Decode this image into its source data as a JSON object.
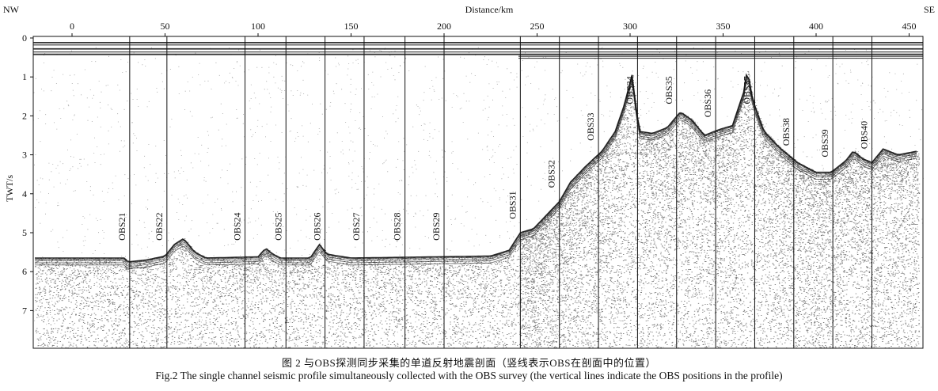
{
  "figure": {
    "corner_left": "NW",
    "corner_right": "SE",
    "x_axis_title": "Distance/km",
    "y_axis_title": "TWT/s",
    "x_ticks": [
      0,
      50,
      100,
      150,
      200,
      250,
      300,
      350,
      400,
      450
    ],
    "y_ticks": [
      0,
      1,
      2,
      3,
      4,
      5,
      6,
      7
    ],
    "obs_stations": [
      {
        "name": "OBS21",
        "km": 31
      },
      {
        "name": "OBS22",
        "km": 51
      },
      {
        "name": "OBS24",
        "km": 93
      },
      {
        "name": "OBS25",
        "km": 115
      },
      {
        "name": "OBS26",
        "km": 136
      },
      {
        "name": "OBS27",
        "km": 157
      },
      {
        "name": "OBS28",
        "km": 179
      },
      {
        "name": "OBS29",
        "km": 200
      },
      {
        "name": "OBS31",
        "km": 241
      },
      {
        "name": "OBS32",
        "km": 262
      },
      {
        "name": "OBS33",
        "km": 283
      },
      {
        "name": "OBS34",
        "km": 304
      },
      {
        "name": "OBS35",
        "km": 325
      },
      {
        "name": "OBS36",
        "km": 346
      },
      {
        "name": "OBS37",
        "km": 367
      },
      {
        "name": "OBS38",
        "km": 388
      },
      {
        "name": "OBS39",
        "km": 409
      },
      {
        "name": "OBS40",
        "km": 430
      }
    ],
    "seafloor_profile": [
      [
        -20,
        5.65
      ],
      [
        28,
        5.65
      ],
      [
        30,
        5.75
      ],
      [
        40,
        5.7
      ],
      [
        50,
        5.6
      ],
      [
        55,
        5.3
      ],
      [
        60,
        5.15
      ],
      [
        66,
        5.5
      ],
      [
        72,
        5.65
      ],
      [
        100,
        5.62
      ],
      [
        104,
        5.4
      ],
      [
        108,
        5.55
      ],
      [
        112,
        5.65
      ],
      [
        128,
        5.65
      ],
      [
        133,
        5.3
      ],
      [
        137,
        5.55
      ],
      [
        150,
        5.65
      ],
      [
        225,
        5.6
      ],
      [
        235,
        5.45
      ],
      [
        241,
        5.0
      ],
      [
        248,
        4.9
      ],
      [
        256,
        4.5
      ],
      [
        262,
        4.2
      ],
      [
        268,
        3.7
      ],
      [
        276,
        3.3
      ],
      [
        285,
        2.9
      ],
      [
        292,
        2.4
      ],
      [
        297,
        1.7
      ],
      [
        301,
        0.95
      ],
      [
        303,
        1.7
      ],
      [
        305,
        2.4
      ],
      [
        312,
        2.45
      ],
      [
        320,
        2.3
      ],
      [
        327,
        1.9
      ],
      [
        333,
        2.1
      ],
      [
        340,
        2.5
      ],
      [
        348,
        2.35
      ],
      [
        355,
        2.25
      ],
      [
        361,
        1.4
      ],
      [
        363,
        0.8
      ],
      [
        366,
        1.6
      ],
      [
        372,
        2.4
      ],
      [
        380,
        2.8
      ],
      [
        390,
        3.2
      ],
      [
        400,
        3.45
      ],
      [
        408,
        3.45
      ],
      [
        416,
        3.15
      ],
      [
        420,
        2.9
      ],
      [
        425,
        3.1
      ],
      [
        430,
        3.2
      ],
      [
        436,
        2.85
      ],
      [
        444,
        3.0
      ],
      [
        455,
        2.9
      ]
    ],
    "colors": {
      "ink": "#111111",
      "paper": "#ffffff",
      "noise": "#555555"
    }
  },
  "caption": {
    "zh": "图 2  与OBS探测同步采集的单道反射地震剖面（竖线表示OBS在剖面中的位置）",
    "en": "Fig.2  The single channel seismic profile simultaneously collected with the OBS survey (the vertical lines indicate the OBS positions in the profile)"
  }
}
